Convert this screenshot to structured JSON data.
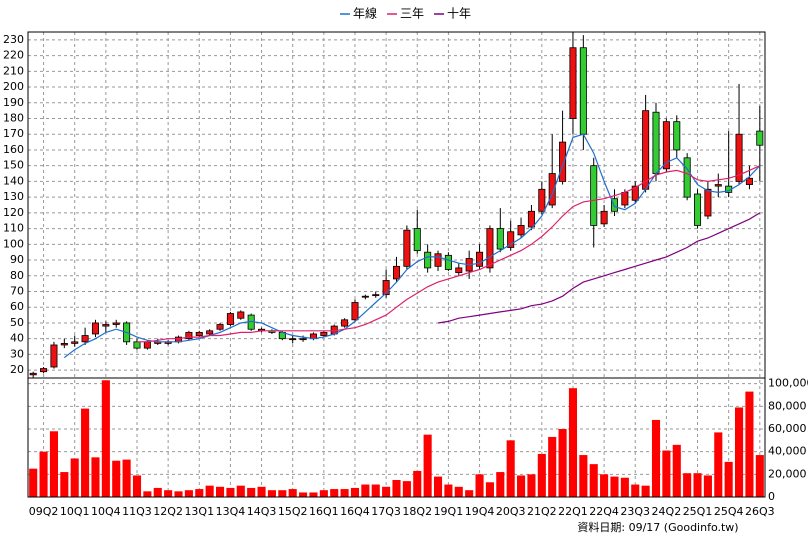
{
  "chart_data": {
    "type": "candlestick",
    "legend": "top",
    "grid": true,
    "footer": "資料日期: 09/17  (Goodinfo.tw)",
    "categories": [
      null,
      "09Q2",
      null,
      null,
      "10Q1",
      null,
      null,
      "10Q4",
      null,
      null,
      "11Q3",
      null,
      null,
      "12Q2",
      null,
      null,
      "13Q1",
      null,
      null,
      "13Q4",
      null,
      null,
      "14Q3",
      null,
      null,
      "15Q2",
      null,
      null,
      "16Q1",
      null,
      null,
      "16Q4",
      null,
      null,
      "17Q3",
      null,
      null,
      "18Q2",
      null,
      null,
      "19Q1",
      null,
      null,
      "19Q4",
      null,
      null,
      "20Q3",
      null,
      null,
      "21Q2",
      null,
      null,
      "22Q1",
      null,
      null,
      "22Q4",
      null,
      null,
      "23Q3",
      null,
      null,
      "24Q2",
      null,
      null,
      "25Q1",
      null,
      null,
      "25Q4",
      null,
      null,
      "26Q3"
    ],
    "up_color": "#ee1111",
    "down_color": "#33cc33",
    "ohlc": {
      "open": [
        17,
        19,
        22,
        36,
        37,
        38,
        43,
        48,
        49,
        50,
        38,
        34,
        37,
        37,
        38,
        40,
        42,
        43,
        46,
        49,
        53,
        55,
        45,
        45,
        44,
        40,
        40,
        40,
        42,
        43,
        48,
        52,
        67,
        68,
        68,
        78,
        86,
        110,
        95,
        86,
        93,
        82,
        83,
        86,
        85,
        110,
        98,
        106,
        111,
        121,
        125,
        140,
        180,
        225,
        150,
        113,
        129,
        125,
        128,
        135,
        184,
        148,
        178,
        155,
        132,
        118,
        137,
        137,
        140,
        138,
        172
      ],
      "high": [
        19,
        22,
        38,
        40,
        42,
        47,
        52,
        51,
        52,
        51,
        40,
        39,
        40,
        39,
        42,
        45,
        45,
        46,
        50,
        57,
        58,
        56,
        47,
        46,
        45,
        42,
        42,
        44,
        45,
        49,
        53,
        65,
        68,
        70,
        84,
        92,
        112,
        122,
        100,
        96,
        95,
        88,
        96,
        100,
        112,
        123,
        115,
        117,
        125,
        140,
        170,
        185,
        235,
        233,
        155,
        125,
        135,
        135,
        140,
        195,
        190,
        180,
        182,
        158,
        135,
        140,
        145,
        172,
        202,
        150,
        188
      ],
      "low": [
        15,
        18,
        21,
        34,
        35,
        36,
        41,
        44,
        47,
        36,
        33,
        33,
        36,
        36,
        37,
        39,
        41,
        42,
        45,
        48,
        52,
        45,
        44,
        43,
        39,
        37,
        38,
        39,
        41,
        42,
        47,
        51,
        65,
        66,
        66,
        76,
        84,
        94,
        82,
        83,
        83,
        80,
        78,
        84,
        82,
        95,
        96,
        104,
        109,
        119,
        123,
        138,
        170,
        160,
        98,
        111,
        118,
        123,
        126,
        133,
        140,
        146,
        155,
        128,
        110,
        116,
        130,
        130,
        138,
        135,
        140
      ],
      "close": [
        18,
        21,
        36,
        37,
        38,
        42,
        50,
        49,
        50,
        38,
        34,
        38,
        38,
        38,
        41,
        44,
        44,
        45,
        49,
        56,
        57,
        46,
        46,
        44,
        40,
        40,
        40,
        43,
        44,
        48,
        52,
        63,
        67,
        68,
        77,
        86,
        109,
        96,
        85,
        94,
        84,
        85,
        91,
        95,
        110,
        97,
        108,
        112,
        121,
        135,
        145,
        165,
        225,
        170,
        112,
        121,
        121,
        133,
        137,
        185,
        145,
        178,
        160,
        130,
        112,
        135,
        138,
        133,
        170,
        142,
        163
      ]
    },
    "ylim": [
      15,
      235
    ],
    "yticks": [
      20,
      30,
      40,
      50,
      60,
      70,
      80,
      90,
      100,
      110,
      120,
      130,
      140,
      150,
      160,
      170,
      180,
      190,
      200,
      210,
      220,
      230
    ],
    "volume": {
      "color": "#ff0000",
      "axis": "y2",
      "values": [
        25000,
        40000,
        58000,
        22000,
        34000,
        78000,
        35000,
        103000,
        32000,
        33000,
        19000,
        5000,
        8000,
        6000,
        5000,
        6000,
        7000,
        10000,
        9000,
        8000,
        10000,
        8000,
        9000,
        6000,
        6000,
        7000,
        4000,
        4000,
        6000,
        7000,
        7000,
        8000,
        11000,
        11000,
        9000,
        15000,
        14000,
        23000,
        55000,
        18000,
        11000,
        9000,
        6000,
        20000,
        13000,
        22000,
        50000,
        19000,
        20000,
        38000,
        53000,
        60000,
        96000,
        37000,
        29000,
        20000,
        18000,
        17000,
        11000,
        10000,
        68000,
        41000,
        46000,
        21000,
        21000,
        19000,
        57000,
        31000,
        79000,
        93000,
        37000
      ]
    },
    "y2lim": [
      0,
      105000
    ],
    "y2ticks": [
      0,
      {
        "value": 20000,
        "label": "20,000"
      },
      {
        "value": 40000,
        "label": "40,000"
      },
      {
        "value": 60000,
        "label": "60,000"
      },
      {
        "value": 80000,
        "label": "80,000"
      },
      {
        "value": 100000,
        "label": "100,000"
      }
    ],
    "series": [
      {
        "name": "年線",
        "color": "#1f6fd0",
        "values": [
          null,
          null,
          null,
          28,
          33,
          37,
          40,
          44,
          46,
          44,
          41,
          39,
          38,
          38,
          38,
          39,
          40,
          42,
          44,
          47,
          50,
          51,
          50,
          47,
          44,
          42,
          41,
          40,
          41,
          43,
          46,
          51,
          57,
          63,
          69,
          76,
          84,
          89,
          92,
          92,
          90,
          88,
          87,
          88,
          92,
          96,
          100,
          104,
          110,
          118,
          132,
          150,
          168,
          170,
          158,
          140,
          124,
          122,
          126,
          135,
          145,
          152,
          155,
          148,
          138,
          134,
          133,
          134,
          138,
          143,
          150
        ]
      },
      {
        "name": "三年",
        "color": "#e0206a",
        "values": [
          null,
          null,
          null,
          null,
          null,
          null,
          null,
          null,
          null,
          null,
          38,
          38,
          39,
          40,
          40,
          41,
          41,
          42,
          42,
          43,
          44,
          44,
          45,
          45,
          45,
          45,
          45,
          45,
          45,
          45,
          46,
          47,
          49,
          52,
          55,
          60,
          65,
          69,
          73,
          76,
          78,
          80,
          82,
          84,
          87,
          90,
          93,
          96,
          100,
          105,
          111,
          118,
          124,
          127,
          128,
          129,
          131,
          133,
          136,
          140,
          144,
          146,
          147,
          145,
          141,
          140,
          141,
          142,
          144,
          147,
          150
        ]
      },
      {
        "name": "十年",
        "color": "#800080",
        "values": [
          null,
          null,
          null,
          null,
          null,
          null,
          null,
          null,
          null,
          null,
          null,
          null,
          null,
          null,
          null,
          null,
          null,
          null,
          null,
          null,
          null,
          null,
          null,
          null,
          null,
          null,
          null,
          null,
          null,
          null,
          null,
          null,
          null,
          null,
          null,
          null,
          null,
          null,
          null,
          50,
          51,
          53,
          54,
          55,
          56,
          57,
          58,
          59,
          61,
          62,
          64,
          67,
          72,
          76,
          78,
          80,
          82,
          84,
          86,
          88,
          90,
          92,
          95,
          98,
          102,
          104,
          107,
          110,
          113,
          116,
          120
        ]
      }
    ]
  }
}
